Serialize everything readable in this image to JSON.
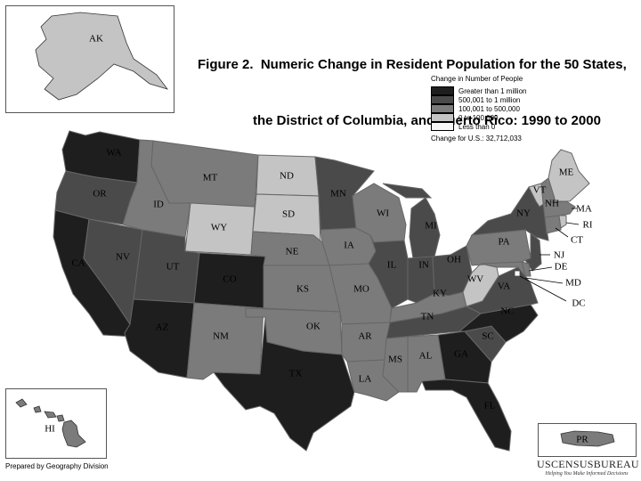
{
  "title": {
    "line1": "Figure 2.  Numeric Change in Resident Population for the 50 States,",
    "line2": "the District of Columbia, and Puerto Rico: 1990 to 2000"
  },
  "legend": {
    "title": "Change in Number of People",
    "categories": [
      {
        "label": "Greater than 1 million",
        "color": "#1e1e1e"
      },
      {
        "label": "500,001 to 1 million",
        "color": "#4a4a4a"
      },
      {
        "label": "100,001 to 500,000",
        "color": "#7b7b7b"
      },
      {
        "label": "0 to 100,000",
        "color": "#c4c4c4"
      },
      {
        "label": "Less than 0",
        "color": "#f7f7f7"
      }
    ],
    "total": "Change for U.S.: 32,712,033"
  },
  "states": {
    "AK": {
      "label": "AK",
      "category": "0 to 100,000"
    },
    "HI": {
      "label": "HI",
      "category": "100,001 to 500,000"
    },
    "PR": {
      "label": "PR",
      "category": "100,001 to 500,000"
    },
    "WA": {
      "label": "WA",
      "category": "Greater than 1 million"
    },
    "OR": {
      "label": "OR",
      "category": "500,001 to 1 million"
    },
    "CA": {
      "label": "CA",
      "category": "Greater than 1 million"
    },
    "NV": {
      "label": "NV",
      "category": "500,001 to 1 million"
    },
    "ID": {
      "label": "ID",
      "category": "100,001 to 500,000"
    },
    "MT": {
      "label": "MT",
      "category": "100,001 to 500,000"
    },
    "WY": {
      "label": "WY",
      "category": "0 to 100,000"
    },
    "UT": {
      "label": "UT",
      "category": "500,001 to 1 million"
    },
    "AZ": {
      "label": "AZ",
      "category": "Greater than 1 million"
    },
    "CO": {
      "label": "CO",
      "category": "Greater than 1 million"
    },
    "NM": {
      "label": "NM",
      "category": "100,001 to 500,000"
    },
    "ND": {
      "label": "ND",
      "category": "0 to 100,000"
    },
    "SD": {
      "label": "SD",
      "category": "0 to 100,000"
    },
    "NE": {
      "label": "NE",
      "category": "100,001 to 500,000"
    },
    "KS": {
      "label": "KS",
      "category": "100,001 to 500,000"
    },
    "OK": {
      "label": "OK",
      "category": "100,001 to 500,000"
    },
    "TX": {
      "label": "TX",
      "category": "Greater than 1 million"
    },
    "MN": {
      "label": "MN",
      "category": "500,001 to 1 million"
    },
    "IA": {
      "label": "IA",
      "category": "100,001 to 500,000"
    },
    "MO": {
      "label": "MO",
      "category": "100,001 to 500,000"
    },
    "AR": {
      "label": "AR",
      "category": "100,001 to 500,000"
    },
    "LA": {
      "label": "LA",
      "category": "100,001 to 500,000"
    },
    "WI": {
      "label": "WI",
      "category": "100,001 to 500,000"
    },
    "IL": {
      "label": "IL",
      "category": "500,001 to 1 million"
    },
    "MI": {
      "label": "MI",
      "category": "500,001 to 1 million"
    },
    "IN": {
      "label": "IN",
      "category": "500,001 to 1 million"
    },
    "OH": {
      "label": "OH",
      "category": "500,001 to 1 million"
    },
    "KY": {
      "label": "KY",
      "category": "100,001 to 500,000"
    },
    "TN": {
      "label": "TN",
      "category": "500,001 to 1 million"
    },
    "MS": {
      "label": "MS",
      "category": "100,001 to 500,000"
    },
    "AL": {
      "label": "AL",
      "category": "100,001 to 500,000"
    },
    "GA": {
      "label": "GA",
      "category": "Greater than 1 million"
    },
    "FL": {
      "label": "FL",
      "category": "Greater than 1 million"
    },
    "SC": {
      "label": "SC",
      "category": "500,001 to 1 million"
    },
    "NC": {
      "label": "NC",
      "category": "Greater than 1 million"
    },
    "VA": {
      "label": "VA",
      "category": "500,001 to 1 million"
    },
    "WV": {
      "label": "WV",
      "category": "0 to 100,000"
    },
    "PA": {
      "label": "PA",
      "category": "100,001 to 500,000"
    },
    "NY": {
      "label": "NY",
      "category": "500,001 to 1 million"
    },
    "NJ": {
      "label": "NJ",
      "category": "500,001 to 1 million"
    },
    "DE": {
      "label": "DE",
      "category": "100,001 to 500,000"
    },
    "MD": {
      "label": "MD",
      "category": "100,001 to 500,000"
    },
    "DC": {
      "label": "DC",
      "category": "Less than 0"
    },
    "CT": {
      "label": "CT",
      "category": "100,001 to 500,000"
    },
    "RI": {
      "label": "RI",
      "category": "0 to 100,000"
    },
    "MA": {
      "label": "MA",
      "category": "100,001 to 500,000"
    },
    "VT": {
      "label": "VT",
      "category": "0 to 100,000"
    },
    "NH": {
      "label": "NH",
      "category": "100,001 to 500,000"
    },
    "ME": {
      "label": "ME",
      "category": "0 to 100,000"
    }
  },
  "footer": {
    "credit": "Prepared by Geography Division",
    "logo_name": "USCENSUSBUREAU",
    "logo_tagline": "Helping You Make Informed Decisions"
  }
}
